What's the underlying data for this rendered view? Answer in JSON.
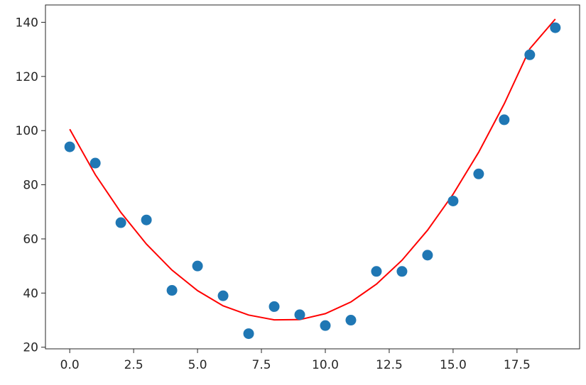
{
  "chart_data": {
    "type": "scatter",
    "title": "",
    "xlabel": "",
    "ylabel": "",
    "xlim": [
      -0.95,
      19.95
    ],
    "ylim": [
      19.4,
      146.4
    ],
    "grid": false,
    "x_ticks": [
      0.0,
      2.5,
      5.0,
      7.5,
      10.0,
      12.5,
      15.0,
      17.5
    ],
    "x_tick_labels": [
      "0.0",
      "2.5",
      "5.0",
      "7.5",
      "10.0",
      "12.5",
      "15.0",
      "17.5"
    ],
    "y_ticks": [
      20,
      40,
      60,
      80,
      100,
      120,
      140
    ],
    "y_tick_labels": [
      "20",
      "40",
      "60",
      "80",
      "100",
      "120",
      "140"
    ],
    "series": [
      {
        "kind": "scatter",
        "color": "#1f77b4",
        "x": [
          0,
          1,
          2,
          3,
          4,
          5,
          6,
          7,
          8,
          9,
          10,
          11,
          12,
          13,
          14,
          15,
          16,
          17,
          18,
          19
        ],
        "y": [
          94,
          88,
          66,
          67,
          41,
          50,
          39,
          25,
          35,
          32,
          28,
          30,
          48,
          48,
          54,
          74,
          84,
          104,
          128,
          138
        ]
      },
      {
        "kind": "line",
        "color": "#ff0000",
        "x": [
          0,
          1,
          2,
          3,
          4,
          5,
          6,
          7,
          8,
          9,
          10,
          11,
          12,
          13,
          14,
          15,
          16,
          17,
          18,
          19
        ],
        "y": [
          100.5,
          83.7,
          69.8,
          58.1,
          48.5,
          40.9,
          35.3,
          31.9,
          30.1,
          30.2,
          32.4,
          36.7,
          43.3,
          52.1,
          63.2,
          76.5,
          92.0,
          109.9,
          130.2,
          141.2
        ]
      }
    ]
  }
}
